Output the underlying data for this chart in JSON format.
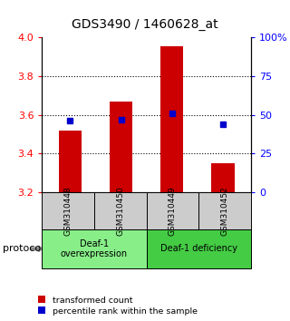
{
  "title": "GDS3490 / 1460628_at",
  "samples": [
    "GSM310448",
    "GSM310450",
    "GSM310449",
    "GSM310452"
  ],
  "red_values": [
    3.52,
    3.67,
    3.95,
    3.35
  ],
  "blue_values_pct": [
    46,
    47,
    51,
    44
  ],
  "ylim_left": [
    3.2,
    4.0
  ],
  "ylim_right": [
    0,
    100
  ],
  "yticks_left": [
    3.2,
    3.4,
    3.6,
    3.8,
    4.0
  ],
  "yticks_right": [
    0,
    25,
    50,
    75,
    100
  ],
  "ytick_labels_right": [
    "0",
    "25",
    "50",
    "75",
    "100%"
  ],
  "bar_color": "#cc0000",
  "dot_color": "#0000cc",
  "bar_bottom": 3.2,
  "groups": [
    {
      "label": "Deaf-1\noverexpression",
      "samples": [
        0,
        1
      ],
      "color": "#88ee88"
    },
    {
      "label": "Deaf-1 deficiency",
      "samples": [
        2,
        3
      ],
      "color": "#44cc44"
    }
  ],
  "legend_red": "transformed count",
  "legend_blue": "percentile rank within the sample",
  "protocol_label": "protocol",
  "sample_bg": "#cccccc"
}
